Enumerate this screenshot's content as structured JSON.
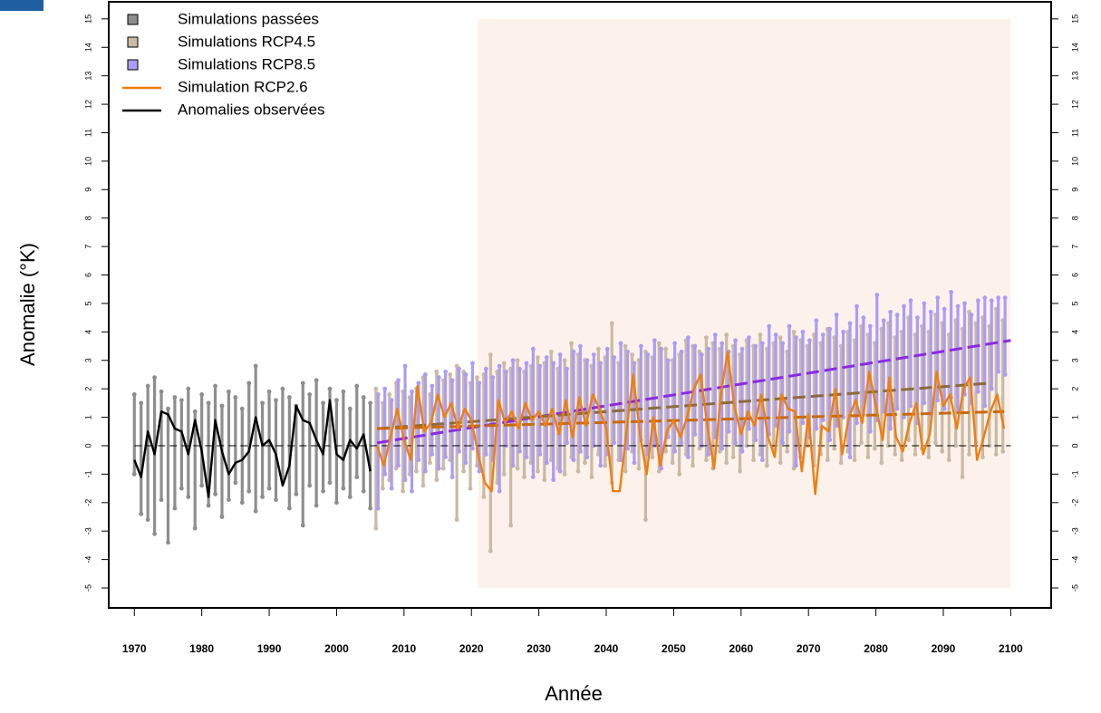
{
  "chart_data": {
    "type": "range-line",
    "xlabel": "Année",
    "ylabel": "Anomalie (°K)",
    "xlim": [
      1966.2,
      2106
    ],
    "ylim": [
      -5.7,
      15.6
    ],
    "xticks": [
      1970,
      1980,
      1990,
      2000,
      2010,
      2020,
      2030,
      2040,
      2050,
      2060,
      2070,
      2080,
      2090,
      2100
    ],
    "yticks": [
      -5,
      -4,
      -3,
      -2,
      -1,
      0,
      1,
      2,
      3,
      4,
      5,
      6,
      7,
      8,
      9,
      10,
      11,
      12,
      13,
      14,
      15
    ],
    "right_axis_ticks": true,
    "legend": "top-left",
    "x_past": [
      1970,
      1971,
      1972,
      1973,
      1974,
      1975,
      1976,
      1977,
      1978,
      1979,
      1980,
      1981,
      1982,
      1983,
      1984,
      1985,
      1986,
      1987,
      1988,
      1989,
      1990,
      1991,
      1992,
      1993,
      1994,
      1995,
      1996,
      1997,
      1998,
      1999,
      2000,
      2001,
      2002,
      2003,
      2004,
      2005
    ],
    "x_future": [
      2006,
      2007,
      2008,
      2009,
      2010,
      2011,
      2012,
      2013,
      2014,
      2015,
      2016,
      2017,
      2018,
      2019,
      2020,
      2021,
      2022,
      2023,
      2024,
      2025,
      2026,
      2027,
      2028,
      2029,
      2030,
      2031,
      2032,
      2033,
      2034,
      2035,
      2036,
      2037,
      2038,
      2039,
      2040,
      2041,
      2042,
      2043,
      2044,
      2045,
      2046,
      2047,
      2048,
      2049,
      2050,
      2051,
      2052,
      2053,
      2054,
      2055,
      2056,
      2057,
      2058,
      2059,
      2060,
      2061,
      2062,
      2063,
      2064,
      2065,
      2066,
      2067,
      2068,
      2069,
      2070,
      2071,
      2072,
      2073,
      2074,
      2075,
      2076,
      2077,
      2078,
      2079,
      2080,
      2081,
      2082,
      2083,
      2084,
      2085,
      2086,
      2087,
      2088,
      2089,
      2090,
      2091,
      2092,
      2093,
      2094,
      2095,
      2096,
      2097,
      2098,
      2099
    ],
    "shaded_region": {
      "x": [
        2021,
        2100
      ],
      "y": [
        -5,
        15
      ],
      "color": "#fdf2eb"
    },
    "series": [
      {
        "name": "Simulations passées",
        "color": "#8e8e8e",
        "kind": "range",
        "period": "past",
        "high": [
          1.8,
          1.5,
          2.1,
          2.4,
          1.9,
          1.3,
          1.7,
          1.6,
          2.0,
          1.2,
          1.8,
          1.5,
          2.1,
          1.4,
          1.9,
          1.7,
          1.3,
          2.2,
          2.8,
          1.5,
          1.9,
          1.6,
          2.0,
          1.7,
          1.4,
          2.2,
          1.8,
          2.3,
          1.5,
          2.0,
          1.6,
          1.9,
          1.3,
          2.1,
          1.7,
          1.5
        ],
        "low": [
          -1.0,
          -2.4,
          -2.6,
          -3.1,
          -1.9,
          -3.4,
          -2.2,
          -1.5,
          -1.8,
          -2.9,
          -1.4,
          -2.1,
          -1.7,
          -2.5,
          -1.9,
          -1.3,
          -2.0,
          -1.6,
          -2.3,
          -1.8,
          -1.5,
          -1.9,
          -1.2,
          -2.2,
          -1.7,
          -2.8,
          -1.4,
          -2.1,
          -1.6,
          -1.3,
          -2.0,
          -1.5,
          -1.8,
          -1.1,
          -1.6,
          -2.2
        ]
      },
      {
        "name": "Simulations RCP4.5",
        "color": "#c9b9a5",
        "kind": "range",
        "period": "future",
        "high": [
          2.0,
          1.5,
          1.8,
          2.2,
          1.9,
          1.7,
          2.0,
          2.4,
          1.8,
          2.6,
          2.3,
          2.5,
          2.8,
          2.6,
          2.2,
          2.4,
          2.5,
          3.2,
          2.6,
          2.9,
          2.7,
          3.0,
          2.6,
          2.8,
          3.1,
          2.9,
          3.3,
          2.7,
          3.0,
          3.6,
          3.2,
          3.0,
          2.8,
          3.4,
          3.1,
          4.3,
          2.9,
          3.5,
          3.2,
          3.0,
          3.3,
          3.1,
          3.6,
          3.4,
          3.0,
          3.2,
          3.7,
          3.5,
          3.3,
          3.8,
          3.6,
          3.4,
          3.9,
          3.5,
          3.2,
          3.7,
          3.5,
          3.9,
          3.4,
          3.6,
          3.8,
          3.3,
          4.0,
          3.7,
          3.5,
          3.9,
          3.6,
          4.1,
          3.8,
          3.5,
          4.0,
          3.7,
          4.2,
          3.9,
          3.6,
          4.1,
          4.3,
          3.8,
          4.0,
          4.5,
          3.9,
          4.2,
          4.0,
          4.6,
          4.3,
          3.9,
          4.4,
          4.1,
          4.7,
          4.3,
          4.5,
          4.2,
          4.8,
          4.4
        ],
        "low": [
          -2.9,
          -1.5,
          -1.2,
          -0.8,
          -1.6,
          -1.0,
          -0.9,
          -1.4,
          -0.6,
          -1.2,
          -0.8,
          -0.5,
          -2.6,
          -0.9,
          -1.5,
          -0.7,
          -1.8,
          -3.7,
          -1.3,
          -1.0,
          -2.8,
          -0.8,
          -1.1,
          -0.6,
          -0.9,
          -1.2,
          -0.5,
          -0.8,
          -1.0,
          -0.4,
          -0.9,
          -0.6,
          -1.1,
          -0.3,
          -0.7,
          -1.3,
          -0.5,
          -0.9,
          -0.2,
          -0.8,
          -2.6,
          -0.4,
          -0.9,
          -0.2,
          -0.6,
          -1.0,
          -0.3,
          -0.7,
          -0.1,
          -0.5,
          -0.8,
          -0.2,
          -0.6,
          -0.4,
          -0.9,
          0.0,
          -0.5,
          -0.3,
          -0.7,
          -0.1,
          -0.6,
          -0.2,
          -0.8,
          -0.4,
          0.0,
          -0.7,
          -0.3,
          -0.5,
          -0.1,
          -0.6,
          -0.2,
          -0.5,
          0.1,
          -0.4,
          -0.1,
          -0.6,
          0.0,
          -0.3,
          -0.5,
          0.2,
          -0.3,
          -0.1,
          -0.4,
          0.1,
          -0.2,
          -0.5,
          0.0,
          -1.1,
          -0.3,
          0.1,
          -0.4,
          0.0,
          -0.3,
          -0.2
        ]
      },
      {
        "name": "Simulations RCP8.5",
        "color": "#ab9cf6",
        "kind": "range",
        "period": "future",
        "high": [
          1.8,
          2.0,
          1.6,
          2.3,
          2.8,
          1.9,
          2.2,
          2.5,
          2.1,
          2.4,
          2.6,
          2.3,
          2.7,
          2.5,
          2.9,
          2.2,
          2.7,
          2.4,
          2.8,
          2.6,
          3.0,
          2.7,
          2.9,
          3.4,
          2.8,
          3.1,
          2.9,
          3.2,
          2.7,
          3.3,
          3.5,
          3.0,
          3.2,
          2.9,
          3.4,
          3.1,
          3.6,
          3.3,
          2.9,
          3.5,
          3.2,
          3.7,
          3.4,
          3.0,
          3.6,
          3.3,
          3.8,
          3.5,
          3.2,
          3.4,
          3.9,
          3.6,
          3.3,
          3.7,
          3.4,
          3.8,
          3.5,
          3.6,
          4.2,
          3.9,
          3.6,
          4.2,
          3.8,
          4.0,
          3.7,
          4.4,
          3.9,
          4.1,
          4.6,
          4.0,
          4.3,
          4.9,
          4.5,
          4.2,
          5.3,
          4.4,
          4.7,
          4.6,
          4.9,
          5.1,
          4.5,
          5.0,
          4.7,
          5.2,
          4.8,
          5.4,
          4.9,
          5.0,
          4.6,
          5.1,
          5.2,
          5.1,
          5.2,
          5.2
        ],
        "low": [
          -2.2,
          -1.0,
          -1.5,
          -0.7,
          -1.2,
          -1.6,
          -0.5,
          -0.9,
          -0.3,
          -0.8,
          -0.4,
          -1.1,
          -0.2,
          -0.6,
          -0.1,
          -0.9,
          -0.3,
          -0.5,
          -1.6,
          0.0,
          -0.7,
          -0.2,
          -0.4,
          -1.1,
          -0.3,
          -0.6,
          -1.2,
          -0.9,
          0.1,
          -0.5,
          -0.2,
          -0.4,
          0.0,
          -0.7,
          -0.3,
          0.1,
          -0.5,
          -0.1,
          -0.6,
          0.2,
          -0.3,
          0.0,
          -0.8,
          0.3,
          -0.2,
          0.1,
          -0.4,
          0.4,
          0.0,
          -0.3,
          0.3,
          -0.1,
          0.5,
          0.1,
          -0.2,
          0.6,
          0.2,
          -0.5,
          0.4,
          0.7,
          0.1,
          0.5,
          -0.7,
          0.8,
          0.3,
          0.6,
          0.9,
          0.2,
          0.7,
          1.0,
          -0.4,
          0.8,
          1.1,
          0.5,
          0.9,
          1.2,
          0.6,
          1.3,
          1.0,
          1.4,
          0.8,
          1.5,
          1.1,
          1.6,
          1.3,
          1.7,
          1.2,
          1.8,
          1.5,
          1.9,
          1.4,
          2.0,
          2.6,
          2.5
        ]
      },
      {
        "name": "Simulation RCP2.6",
        "color": "#f07d0e",
        "kind": "line",
        "period": "future",
        "values": [
          0.0,
          -0.7,
          0.3,
          1.3,
          0.2,
          -0.5,
          2.1,
          0.5,
          0.8,
          1.8,
          1.0,
          1.5,
          0.6,
          1.3,
          0.9,
          -0.3,
          -1.3,
          -1.6,
          1.6,
          0.8,
          1.2,
          0.6,
          1.5,
          0.9,
          1.2,
          0.7,
          1.3,
          0.4,
          1.6,
          0.3,
          1.7,
          0.7,
          1.8,
          1.3,
          0.6,
          -1.6,
          -1.6,
          0.5,
          2.5,
          0.4,
          -1.0,
          1.0,
          -0.7,
          0.5,
          0.9,
          0.3,
          1.0,
          2.0,
          2.5,
          0.7,
          -0.8,
          1.8,
          3.3,
          1.4,
          0.4,
          1.2,
          0.7,
          1.8,
          0.3,
          -0.4,
          1.8,
          1.3,
          1.2,
          -0.9,
          1.1,
          -1.7,
          0.7,
          0.5,
          2.0,
          -0.3,
          1.0,
          1.6,
          0.8,
          2.6,
          1.4,
          0.2,
          2.4,
          0.3,
          -0.2,
          0.8,
          1.5,
          -0.3,
          0.4,
          2.6,
          1.4,
          1.8,
          0.6,
          2.0,
          2.4,
          -0.5,
          0.3,
          1.2,
          1.8,
          0.6
        ]
      },
      {
        "name": "Anomalies observées",
        "color": "#000000",
        "kind": "line",
        "period": "past",
        "values": [
          -0.5,
          -1.1,
          0.5,
          -0.3,
          1.2,
          1.1,
          0.6,
          0.5,
          -0.3,
          0.9,
          -0.2,
          -1.8,
          0.9,
          -0.2,
          -1.0,
          -0.6,
          -0.5,
          -0.2,
          1.0,
          0.0,
          0.2,
          -0.3,
          -1.4,
          -0.7,
          1.4,
          0.9,
          0.8,
          0.2,
          -0.3,
          1.6,
          -0.3,
          -0.5,
          0.2,
          -0.1,
          0.4,
          -0.9
        ]
      }
    ],
    "trend_lines": [
      {
        "color": "#000000",
        "x": [
          1970,
          2100
        ],
        "values": [
          0,
          0
        ]
      },
      {
        "color": "#8a2be2",
        "x": [
          2006,
          2100
        ],
        "values": [
          0.1,
          3.7
        ]
      },
      {
        "color": "#8b6b3d",
        "x": [
          2006,
          2097
        ],
        "values": [
          0.6,
          2.2
        ]
      },
      {
        "color": "#c86a10",
        "x": [
          2006,
          2099
        ],
        "values": [
          0.6,
          1.2
        ]
      }
    ]
  }
}
